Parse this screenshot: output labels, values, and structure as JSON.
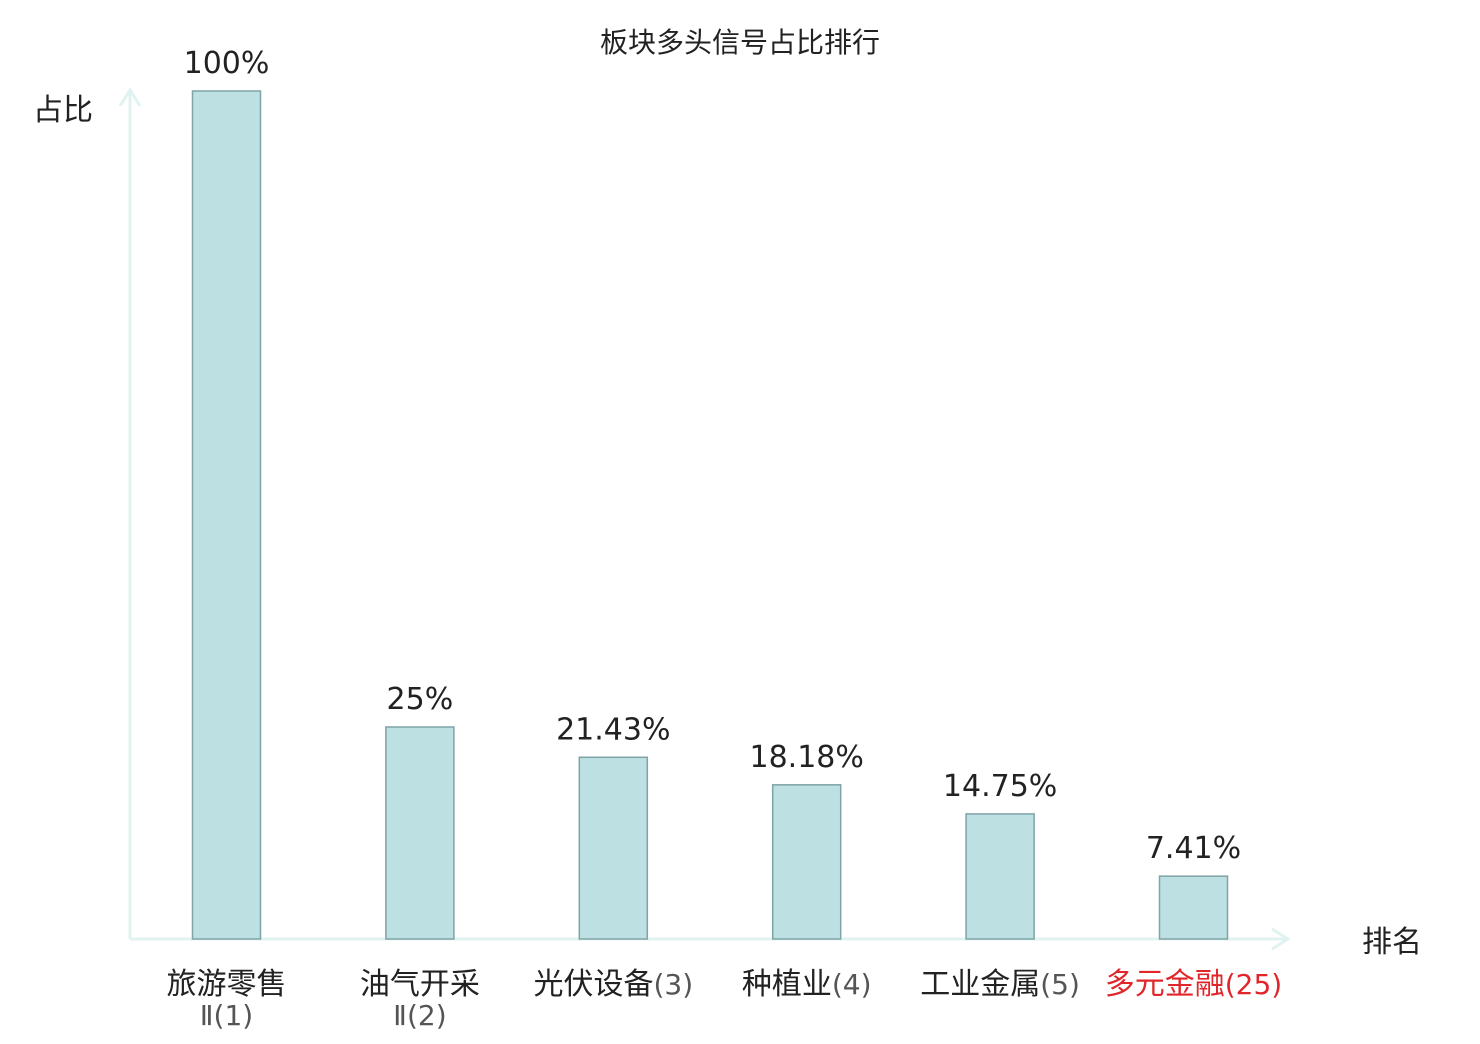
{
  "chart_data": {
    "type": "bar",
    "title": "板块多头信号占比排行",
    "ylabel": "占比",
    "xlabel": "排名",
    "ylim": [
      0,
      100
    ],
    "grid": false,
    "categories": [
      {
        "name": "旅游零售",
        "rank": "Ⅱ(1)",
        "value": 100,
        "label": "100%",
        "highlight": false
      },
      {
        "name": "油气开采",
        "rank": "Ⅱ(2)",
        "value": 25,
        "label": "25%",
        "highlight": false
      },
      {
        "name": "光伏设备",
        "rank": "(3)",
        "value": 21.43,
        "label": "21.43%",
        "highlight": false
      },
      {
        "name": "种植业",
        "rank": "(4)",
        "value": 18.18,
        "label": "18.18%",
        "highlight": false
      },
      {
        "name": "工业金属",
        "rank": "(5)",
        "value": 14.75,
        "label": "14.75%",
        "highlight": false
      },
      {
        "name": "多元金融",
        "rank": "(25)",
        "value": 7.41,
        "label": "7.41%",
        "highlight": true
      }
    ],
    "colors": {
      "bar_fill": "#bde0e3",
      "bar_stroke": "#7fa3a6",
      "axis": "#e0f3f1",
      "text": "#222222",
      "rank_text": "#555555",
      "highlight": "#e0262a"
    }
  }
}
